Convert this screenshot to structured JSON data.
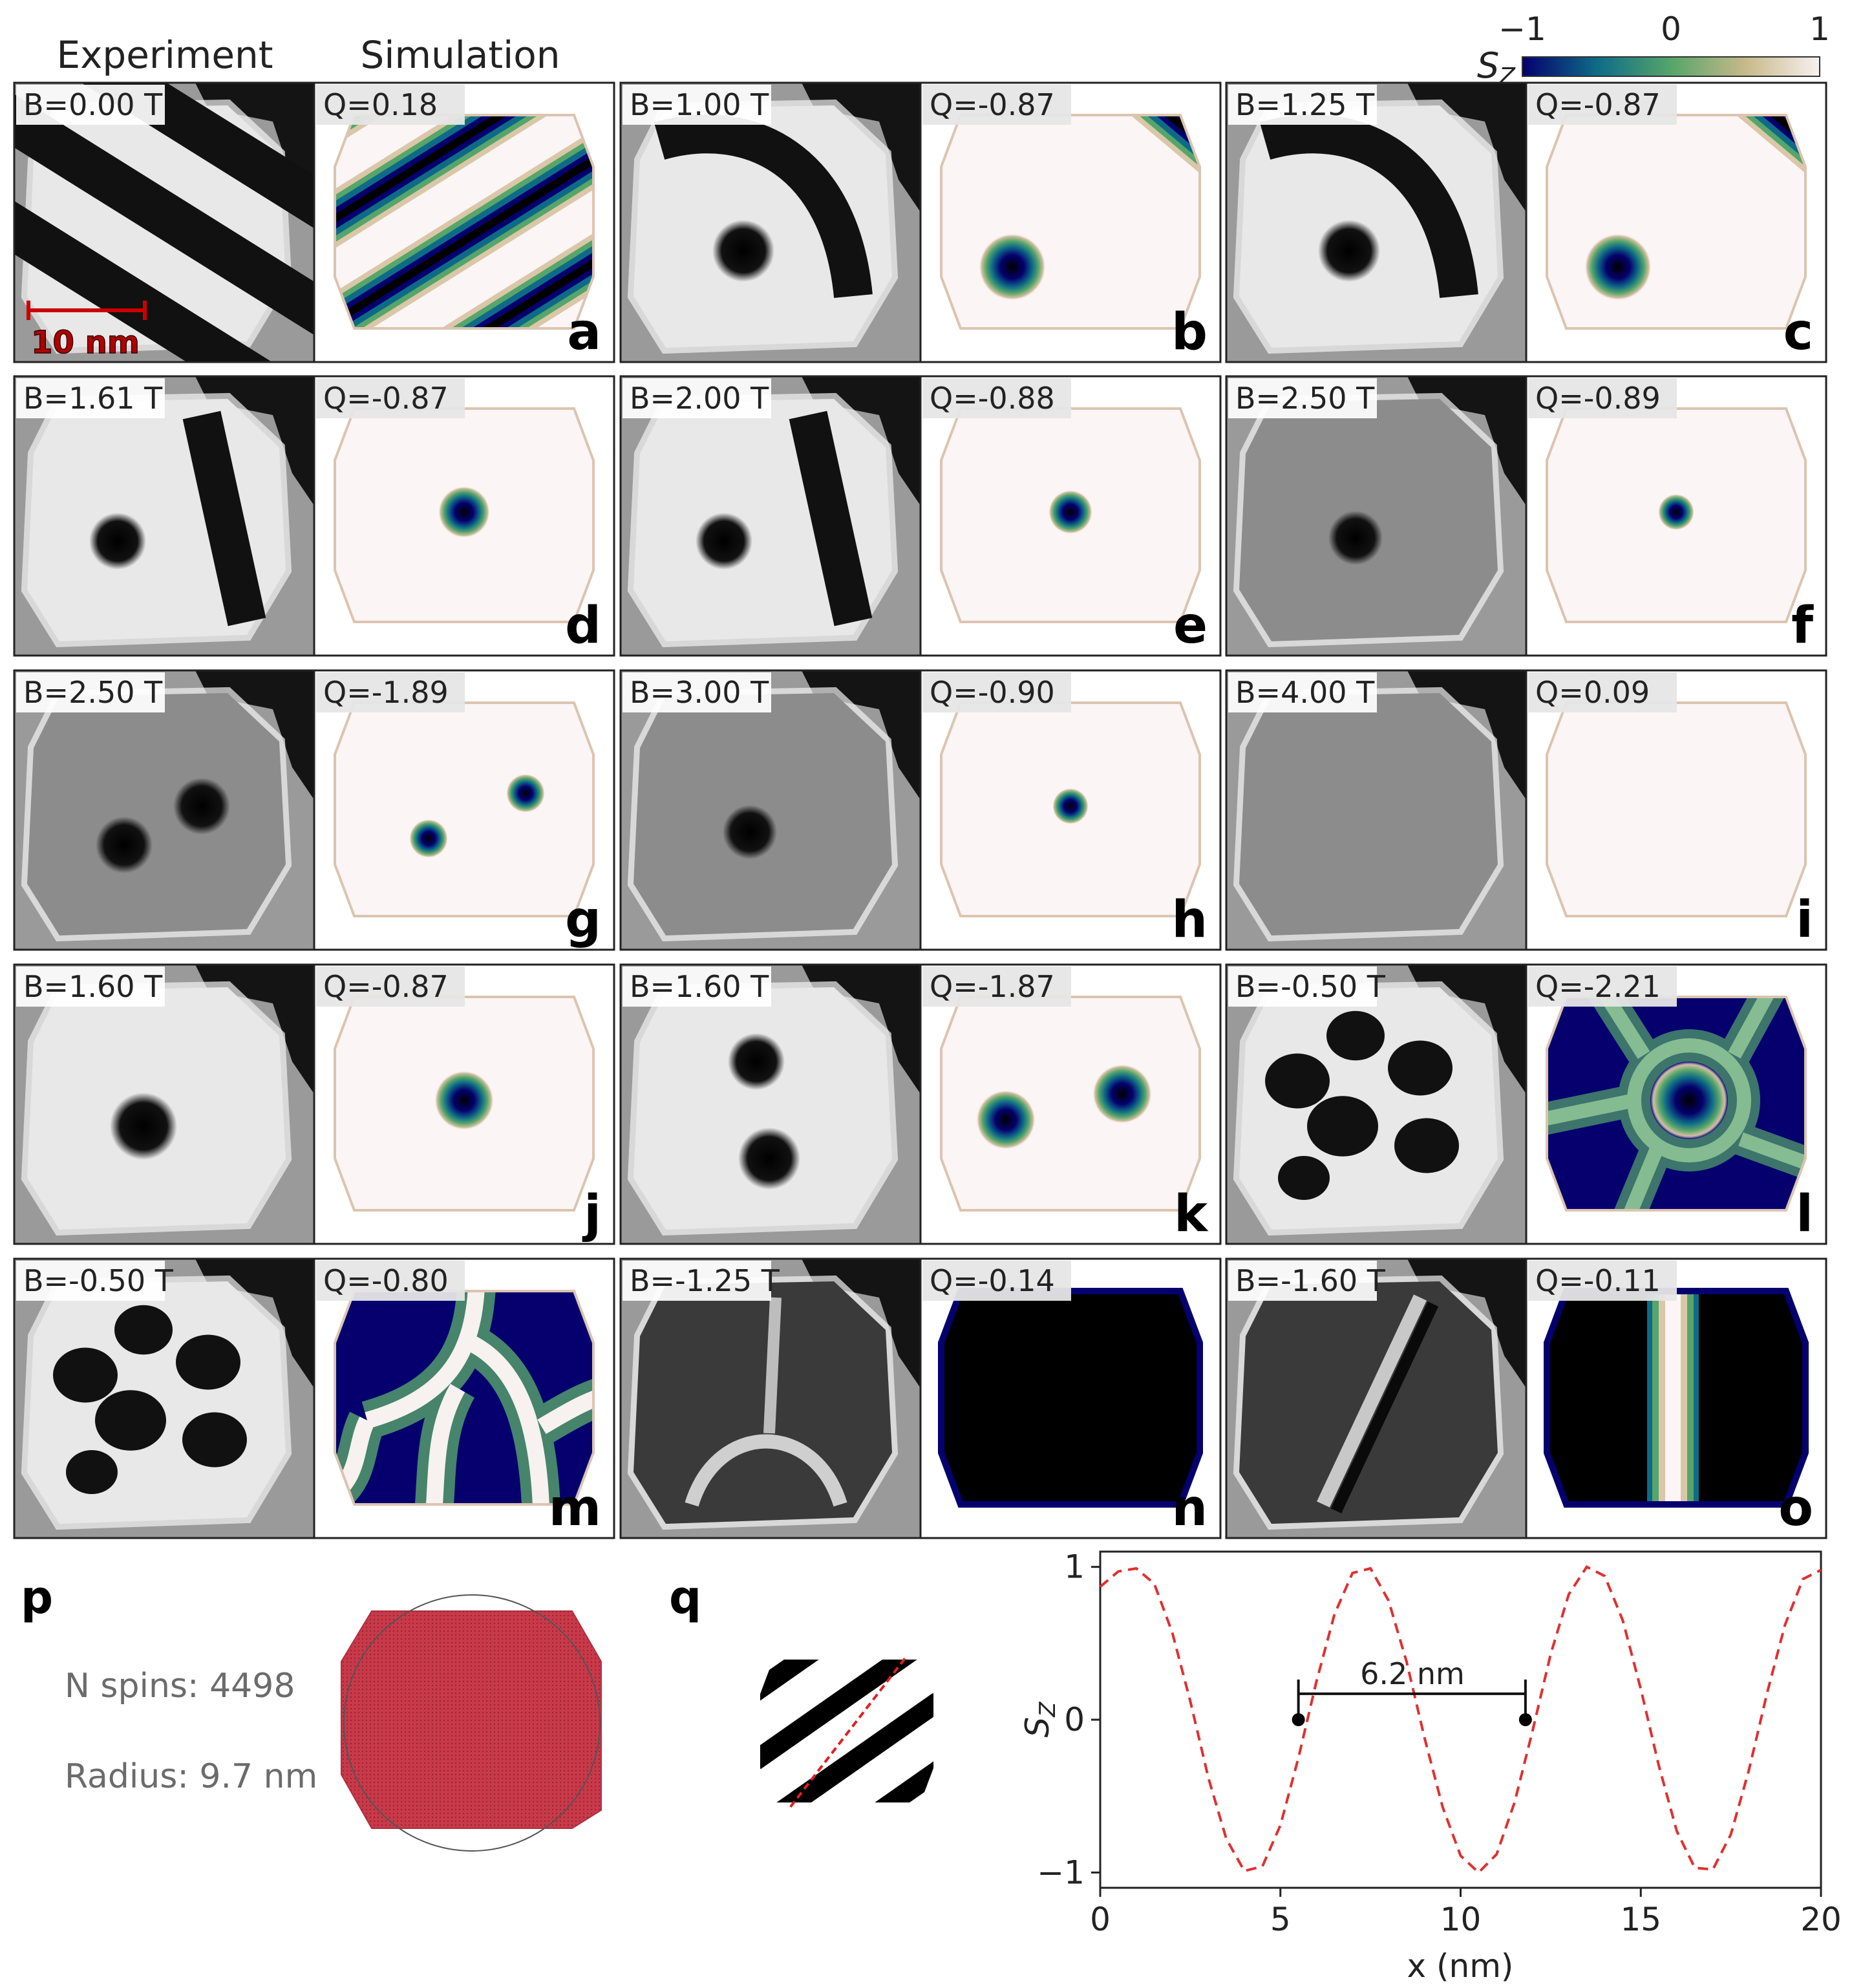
{
  "column_headers": {
    "experiment": "Experiment",
    "simulation": "Simulation"
  },
  "colorbar": {
    "label": "S",
    "label_sub": "Z",
    "ticks": [
      "−1",
      "0",
      "1"
    ],
    "colors": [
      "#05006e",
      "#0e6b87",
      "#56a56a",
      "#c7b98a",
      "#f7f1f0"
    ]
  },
  "panels": [
    {
      "id": "a",
      "field": "B=0.00 T",
      "charge": "Q=0.18",
      "sim": "stripe-diag",
      "exp": "stripe-diag"
    },
    {
      "id": "b",
      "field": "B=1.00 T",
      "charge": "Q=-0.87",
      "sim": "band-sky",
      "exp": "band-sky"
    },
    {
      "id": "c",
      "field": "B=1.25 T",
      "charge": "Q=-0.87",
      "sim": "band-sky",
      "exp": "band-sky"
    },
    {
      "id": "d",
      "field": "B=1.61 T",
      "charge": "Q=-0.87",
      "sim": "sky-center-md",
      "exp": "bar-sky"
    },
    {
      "id": "e",
      "field": "B=2.00 T",
      "charge": "Q=-0.88",
      "sim": "sky-center-sm",
      "exp": "bar-sky"
    },
    {
      "id": "f",
      "field": "B=2.50 T",
      "charge": "Q=-0.89",
      "sim": "sky-center-xs",
      "exp": "sky-only"
    },
    {
      "id": "g",
      "field": "B=2.50 T",
      "charge": "Q=-1.89",
      "sim": "two-sky-sm",
      "exp": "two-sky"
    },
    {
      "id": "h",
      "field": "B=3.00 T",
      "charge": "Q=-0.90",
      "sim": "sky-center-xs",
      "exp": "sky-only"
    },
    {
      "id": "i",
      "field": "B=4.00 T",
      "charge": "Q=0.09",
      "sim": "empty",
      "exp": "empty"
    },
    {
      "id": "j",
      "field": "B=1.60 T",
      "charge": "Q=-0.87",
      "sim": "sky-center-lg",
      "exp": "sky-only-lg"
    },
    {
      "id": "k",
      "field": "B=1.60 T",
      "charge": "Q=-1.87",
      "sim": "two-sky-lg",
      "exp": "two-sky-v"
    },
    {
      "id": "l",
      "field": "B=-0.50 T",
      "charge": "Q=-2.21",
      "sim": "lattice",
      "exp": "lattice"
    },
    {
      "id": "m",
      "field": "B=-0.50 T",
      "charge": "Q=-0.80",
      "sim": "labyrinth",
      "exp": "labyrinth"
    },
    {
      "id": "n",
      "field": "B=-1.25 T",
      "charge": "Q=-0.14",
      "sim": "dark",
      "exp": "dark-arch"
    },
    {
      "id": "o",
      "field": "B=-1.60 T",
      "charge": "Q=-0.11",
      "sim": "dark-wall",
      "exp": "dark-wall"
    }
  ],
  "scale_bar": "10 nm",
  "panel_p": {
    "letter": "p",
    "n_spins": "N spins: 4498",
    "radius": "Radius: 9.7 nm"
  },
  "panel_q": {
    "letter": "q"
  },
  "chart_data": {
    "type": "line",
    "x": [
      0,
      0.5,
      1,
      1.5,
      2,
      2.5,
      3,
      3.5,
      4,
      4.5,
      5,
      5.5,
      6,
      6.5,
      7,
      7.5,
      8,
      8.5,
      9,
      9.5,
      10,
      10.5,
      11,
      11.5,
      12,
      12.5,
      13,
      13.5,
      14,
      14.5,
      15,
      15.5,
      16,
      16.5,
      17,
      17.5,
      18,
      18.5,
      19,
      19.5,
      20
    ],
    "series": [
      {
        "values": [
          0.87,
          0.97,
          0.99,
          0.89,
          0.57,
          0.12,
          -0.38,
          -0.78,
          -0.99,
          -0.96,
          -0.69,
          -0.25,
          0.25,
          0.69,
          0.96,
          0.99,
          0.78,
          0.38,
          -0.12,
          -0.57,
          -0.89,
          -1.0,
          -0.88,
          -0.54,
          -0.07,
          0.43,
          0.82,
          1.0,
          0.94,
          0.65,
          0.2,
          -0.3,
          -0.73,
          -0.97,
          -0.98,
          -0.75,
          -0.33,
          0.17,
          0.62,
          0.92,
          0.98
        ],
        "color": "#e03030",
        "style": "dashed"
      }
    ],
    "markers": [
      {
        "x": 5.5,
        "y": 0
      },
      {
        "x": 11.8,
        "y": 0
      }
    ],
    "annotation": "6.2  nm",
    "xlabel": "x (nm)",
    "ylabel": "S",
    "ylabel_sub": "Z",
    "xlim": [
      0,
      20
    ],
    "ylim": [
      -1.1,
      1.1
    ],
    "xticks": [
      0,
      5,
      10,
      15,
      20
    ],
    "yticks": [
      -1,
      0,
      1
    ],
    "xtick_labels": [
      "0",
      "5",
      "10",
      "15",
      "20"
    ],
    "ytick_labels": [
      "−1",
      "0",
      "1"
    ]
  }
}
